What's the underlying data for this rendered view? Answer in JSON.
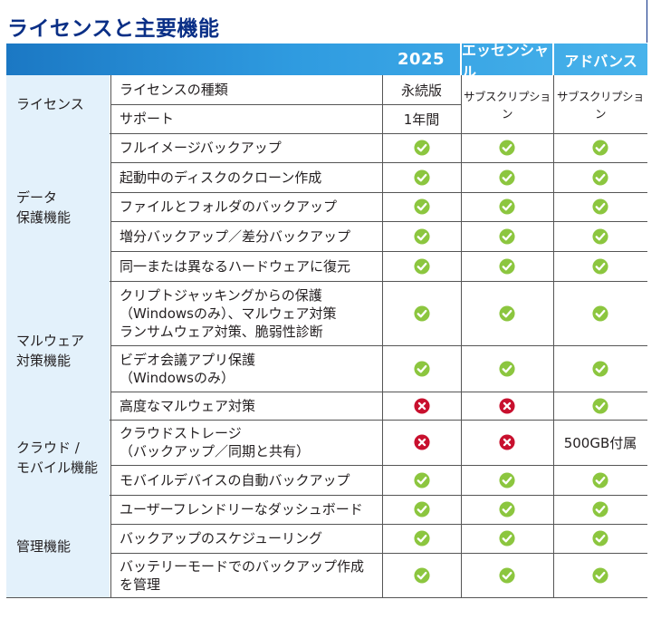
{
  "title": "ライセンスと主要機能",
  "columns": [
    "2025",
    "エッセンシャル",
    "アドバンス"
  ],
  "sections": [
    {
      "category": "ライセンス",
      "rows": [
        {
          "feature": "ライセンスの種類",
          "values": [
            "永続版",
            "サブスクリプション",
            "サブスクリプション"
          ]
        },
        {
          "feature": "サポート",
          "values": [
            "1年間",
            "",
            ""
          ]
        }
      ]
    },
    {
      "category": "データ\n保護機能",
      "rows": [
        {
          "feature": "フルイメージバックアップ",
          "values": [
            "check",
            "check",
            "check"
          ]
        },
        {
          "feature": "起動中のディスクのクローン作成",
          "values": [
            "check",
            "check",
            "check"
          ]
        },
        {
          "feature": "ファイルとフォルダのバックアップ",
          "values": [
            "check",
            "check",
            "check"
          ]
        },
        {
          "feature": "増分バックアップ／差分バックアップ",
          "values": [
            "check",
            "check",
            "check"
          ]
        },
        {
          "feature": "同一または異なるハードウェアに復元",
          "values": [
            "check",
            "check",
            "check"
          ]
        }
      ]
    },
    {
      "category": "マルウェア\n対策機能",
      "rows": [
        {
          "feature": "クリプトジャッキングからの保護\n（Windowsのみ）、マルウェア対策\nランサムウェア対策、脆弱性診断",
          "values": [
            "check",
            "check",
            "check"
          ]
        },
        {
          "feature": "ビデオ会議アプリ保護\n（Windowsのみ）",
          "values": [
            "check",
            "check",
            "check"
          ]
        },
        {
          "feature": "高度なマルウェア対策",
          "values": [
            "cross",
            "cross",
            "check"
          ]
        }
      ]
    },
    {
      "category": "クラウド /\nモバイル機能",
      "rows": [
        {
          "feature": "クラウドストレージ\n（バックアップ／同期と共有）",
          "values": [
            "cross",
            "cross",
            "500GB付属"
          ]
        },
        {
          "feature": "モバイルデバイスの自動バックアップ",
          "values": [
            "check",
            "check",
            "check"
          ]
        }
      ]
    },
    {
      "category": "管理機能",
      "rows": [
        {
          "feature": "ユーザーフレンドリーなダッシュボード",
          "values": [
            "check",
            "check",
            "check"
          ]
        },
        {
          "feature": "バックアップのスケジューリング",
          "values": [
            "check",
            "check",
            "check"
          ]
        },
        {
          "feature": "バッテリーモードでのバックアップ作成\nを管理",
          "values": [
            "check",
            "check",
            "check"
          ]
        }
      ]
    }
  ],
  "colors": {
    "title": "#0a2f86",
    "check": "#8cc63f",
    "cross": "#c8102e",
    "category_bg": "#e3f1fb"
  }
}
